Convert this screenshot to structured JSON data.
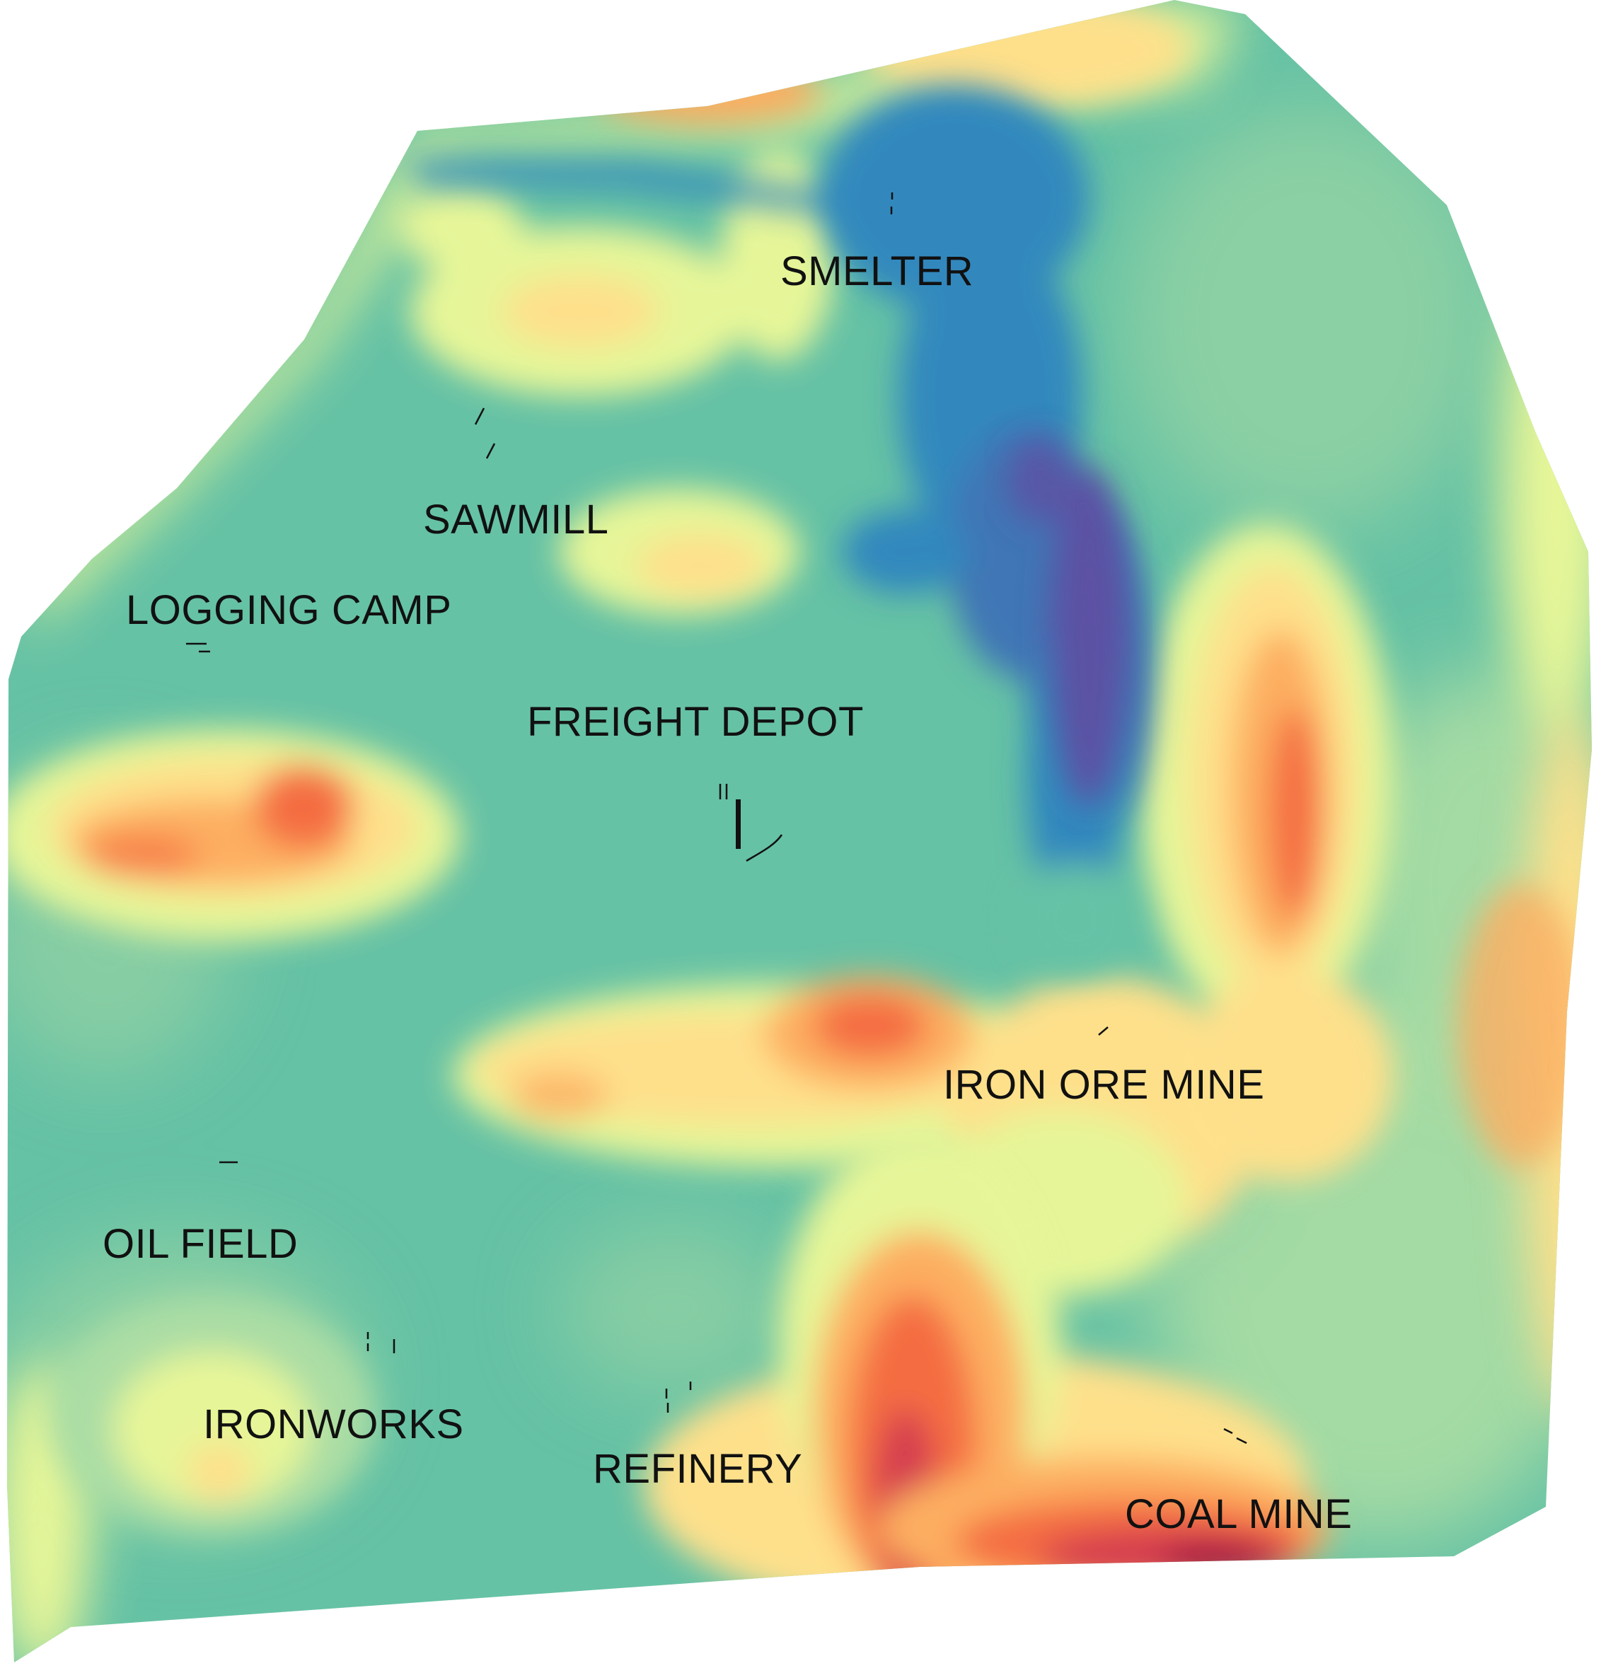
{
  "map": {
    "labels": {
      "smelter": "SMELTER",
      "sawmill": "SAWMILL",
      "logging_camp": "LOGGING CAMP",
      "freight_depot": "FREIGHT DEPOT",
      "iron_ore_mine": "IRON ORE MINE",
      "oil_field": "OIL FIELD",
      "ironworks": "IRONWORKS",
      "refinery": "REFINERY",
      "coal_mine": "COAL MINE"
    },
    "palette": {
      "deep_purple": "#5e4fa2",
      "dark_blue": "#3f76b5",
      "blue": "#3288bd",
      "teal": "#66c2a5",
      "light_teal": "#8fd0a4",
      "pale_green": "#abdda4",
      "light_yellow": "#e6f598",
      "yellow": "#fee08b",
      "orange": "#fdae61",
      "dark_orange": "#f46d43",
      "red": "#d53e4f",
      "crimson": "#9e0142"
    }
  }
}
